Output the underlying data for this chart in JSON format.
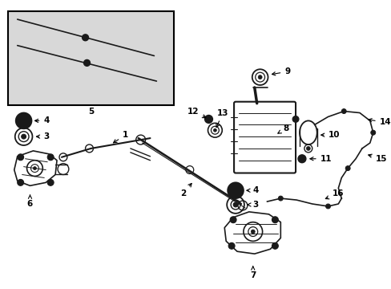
{
  "bg_color": "#ffffff",
  "line_color": "#1a1a1a",
  "inset_bg": "#e8e8e8",
  "inset_border": "#000000",
  "figsize": [
    4.89,
    3.6
  ],
  "dpi": 100
}
